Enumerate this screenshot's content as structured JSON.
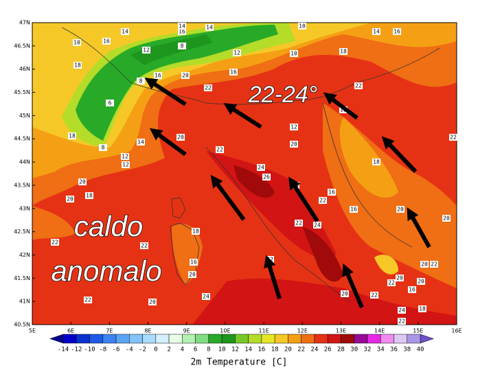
{
  "map": {
    "lat_labels": [
      "47N",
      "46.5N",
      "46N",
      "45.5N",
      "45N",
      "44.5N",
      "44N",
      "43.5N",
      "43N",
      "42.5N",
      "42N",
      "41.5N",
      "41N",
      "40.5N"
    ],
    "lon_labels": [
      "5E",
      "6E",
      "7E",
      "8E",
      "9E",
      "10E",
      "11E",
      "12E",
      "13E",
      "14E",
      "15E",
      "16E"
    ],
    "contour_labels": [
      "14",
      "16",
      "10",
      "14",
      "8",
      "12",
      "16",
      "14",
      "12",
      "10",
      "16",
      "18",
      "10",
      "14",
      "16",
      "18",
      "8",
      "6",
      "20",
      "16",
      "22",
      "18",
      "12",
      "8",
      "22",
      "18",
      "20",
      "18",
      "12",
      "16",
      "20",
      "22",
      "12",
      "16",
      "14",
      "20",
      "22",
      "18",
      "20",
      "18",
      "24",
      "26",
      "20",
      "16",
      "20",
      "22",
      "16",
      "20",
      "20",
      "22",
      "24",
      "22",
      "20",
      "18",
      "16",
      "22",
      "20",
      "22",
      "20",
      "22",
      "22",
      "22",
      "20",
      "24",
      "24",
      "22",
      "22"
    ]
  },
  "overlay": {
    "headline": "22-24°",
    "caption": [
      "caldo",
      "anomalo"
    ]
  },
  "colorbar": {
    "title": "2m Temperature [C]",
    "ticks": [
      -14,
      -12,
      -10,
      -8,
      -6,
      -4,
      -2,
      0,
      2,
      4,
      6,
      8,
      10,
      12,
      14,
      16,
      18,
      20,
      22,
      24,
      26,
      28,
      30,
      32,
      34,
      36,
      38,
      40
    ],
    "colors": [
      "#0000c8",
      "#0a32d2",
      "#1e5ae6",
      "#3c82f0",
      "#5aa5f5",
      "#82c3fa",
      "#aadcff",
      "#d2f0ff",
      "#e6ffe6",
      "#b4f0b4",
      "#82dc82",
      "#28aa28",
      "#1e961e",
      "#78c828",
      "#b4dc28",
      "#e6e628",
      "#f5c828",
      "#f5a014",
      "#f06e14",
      "#e63214",
      "#d21414",
      "#a00a0a",
      "#960a96",
      "#e628e6",
      "#f08cf0",
      "#dcc8f5",
      "#aa96e6"
    ],
    "under_color": "#00008c",
    "over_color": "#6e50c8"
  }
}
